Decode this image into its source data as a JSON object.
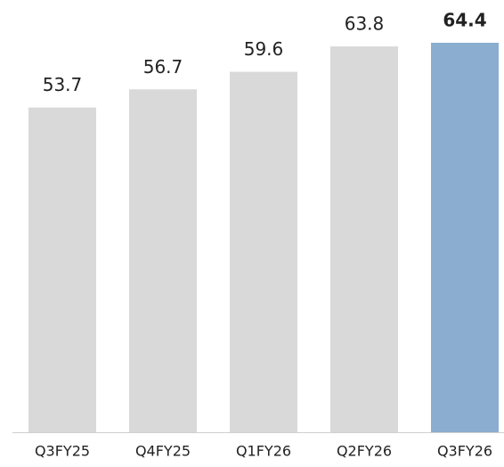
{
  "chart_data": {
    "type": "bar",
    "categories": [
      "Q3FY25",
      "Q4FY25",
      "Q1FY26",
      "Q2FY26",
      "Q3FY26"
    ],
    "values": [
      53.7,
      56.7,
      59.6,
      63.8,
      64.4
    ],
    "colors": [
      "#d9d9d9",
      "#d9d9d9",
      "#d9d9d9",
      "#d9d9d9",
      "#8aadd0"
    ],
    "highlight": "Q3FY26",
    "ylim": [
      0,
      70
    ]
  }
}
